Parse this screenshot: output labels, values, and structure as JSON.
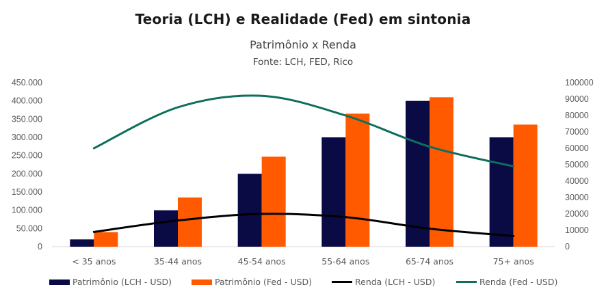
{
  "header": {
    "title": "Teoria (LCH) e Realidade (Fed) em sintonia",
    "subtitle": "Patrimônio x Renda",
    "source": "Fonte: LCH, FED, Rico"
  },
  "chart_data": {
    "type": "bar",
    "title": "Teoria (LCH) e Realidade (Fed) em sintonia",
    "subtitle": "Patrimônio x Renda",
    "annotation": "Fonte: LCH, FED, Rico",
    "categories": [
      "< 35 anos",
      "35-44 anos",
      "45-54 anos",
      "55-64 anos",
      "65-74 anos",
      "75+ anos"
    ],
    "y_left": {
      "range": [
        0,
        450000
      ],
      "ticks": [
        0,
        50000,
        100000,
        150000,
        200000,
        250000,
        300000,
        350000,
        400000,
        450000
      ],
      "tick_labels": [
        "0",
        "50.000",
        "100.000",
        "150.000",
        "200.000",
        "250.000",
        "300.000",
        "350.000",
        "400.000",
        "450.000"
      ]
    },
    "y_right": {
      "range": [
        0,
        100000
      ],
      "ticks": [
        0,
        10000,
        20000,
        30000,
        40000,
        50000,
        60000,
        70000,
        80000,
        90000,
        100000
      ],
      "tick_labels": [
        "0",
        "10000",
        "20000",
        "30000",
        "40000",
        "50000",
        "60000",
        "70000",
        "80000",
        "90000",
        "100000"
      ]
    },
    "series": [
      {
        "name": "Patrimônio (LCH - USD)",
        "type": "bar",
        "axis": "left",
        "color": "#0a0a45",
        "values": [
          20000,
          100000,
          200000,
          300000,
          400000,
          300000
        ]
      },
      {
        "name": "Patrimônio (Fed - USD)",
        "type": "bar",
        "axis": "left",
        "color": "#ff5a00",
        "values": [
          40000,
          135000,
          247000,
          365000,
          410000,
          335000
        ]
      },
      {
        "name": "Renda (LCH - USD)",
        "type": "line",
        "axis": "right",
        "color": "#000000",
        "values": [
          9000,
          16000,
          20000,
          18000,
          11000,
          6500
        ]
      },
      {
        "name": "Renda (Fed - USD)",
        "type": "line",
        "axis": "right",
        "color": "#0f6e5c",
        "values": [
          60000,
          85000,
          92000,
          80000,
          61000,
          49000
        ]
      }
    ],
    "grid": false,
    "legend": "bottom"
  }
}
